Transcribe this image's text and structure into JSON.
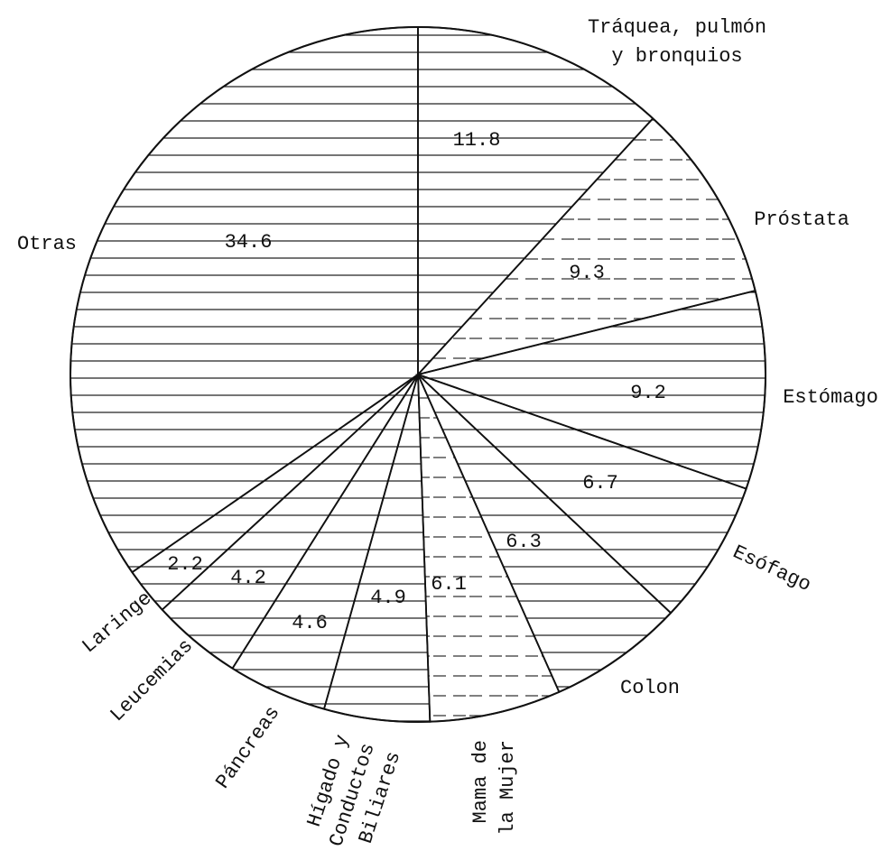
{
  "chart_data": {
    "type": "pie",
    "categories": [
      [
        "Tráquea, pulmón",
        "y bronquios"
      ],
      [
        "Próstata"
      ],
      [
        "Estómago"
      ],
      [
        "Esófago"
      ],
      [
        "Colon"
      ],
      [
        "Mama de",
        "la Mujer"
      ],
      [
        "Hígado y",
        "Conductos",
        "Biliares"
      ],
      [
        "Páncreas"
      ],
      [
        "Leucemias"
      ],
      [
        "Laringe"
      ],
      [
        "Otras"
      ]
    ],
    "values": [
      11.8,
      9.3,
      9.2,
      6.7,
      6.3,
      6.1,
      4.9,
      4.6,
      4.2,
      2.2,
      34.6
    ]
  }
}
